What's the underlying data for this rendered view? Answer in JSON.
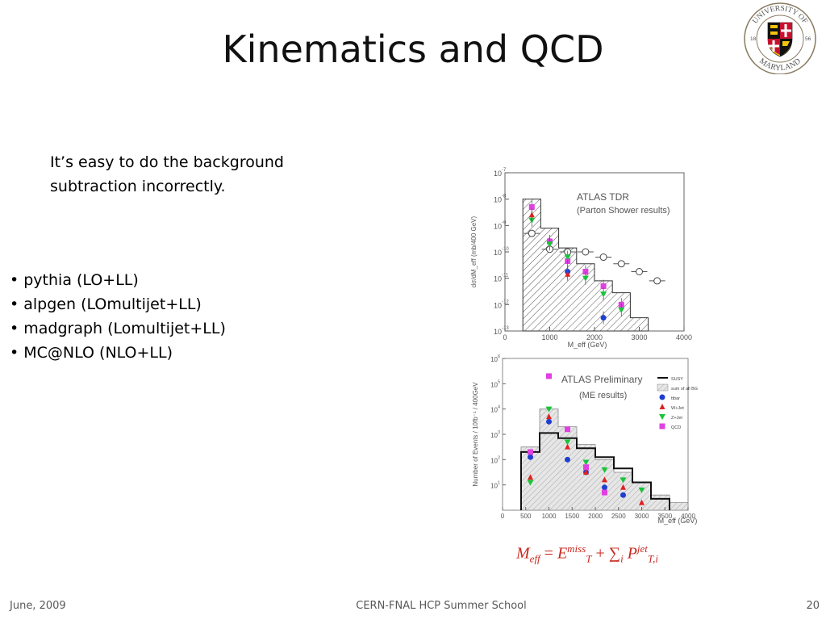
{
  "slide": {
    "title": "Kinematics and QCD",
    "intro": "It’s easy to do the background subtraction incorrectly.",
    "bullets": [
      "pythia (LO+LL)",
      "alpgen (LOmultijet+LL)",
      "madgraph (Lomultijet+LL)",
      "MC@NLO (NLO+LL)"
    ]
  },
  "logo": {
    "top": "UNIVERSITY OF",
    "bottom": "MARYLAND",
    "year_left": "18",
    "year_right": "56"
  },
  "footer": {
    "date": "June, 2009",
    "event": "CERN-FNAL HCP Summer School",
    "page": "20"
  },
  "formula": {
    "lhs": "M",
    "lhs_sub": "eff",
    "e": "E",
    "e_sup": "miss",
    "e_sub": "T",
    "sum_sub": "i",
    "p": "P",
    "p_sup": "jet",
    "p_sub": "T,i"
  },
  "colors": {
    "red": "#e02020",
    "blue": "#1f3fd0",
    "green": "#19c43a",
    "magenta": "#e040e0",
    "formula": "#c8281e"
  },
  "chart_data": [
    {
      "type": "bar",
      "title": "ATLAS TDR",
      "subtitle": "(Parton Shower results)",
      "xlabel": "M_eff (GeV)",
      "ylabel": "dσ/dM_eff (mb/400 GeV)",
      "xlim": [
        0,
        4000
      ],
      "ylim_log10": [
        -13,
        -7
      ],
      "x_ticks": [
        "0",
        "1000",
        "2000",
        "3000",
        "4000"
      ],
      "y_ticks": [
        "10",
        "10",
        "10",
        "10",
        "10",
        "10",
        "10"
      ],
      "y_tick_exponents": [
        "-7",
        "-8",
        "-9",
        "-10",
        "-11",
        "-12",
        "-13"
      ],
      "log_y": true,
      "background_hist": {
        "edges": [
          400,
          800,
          1200,
          1600,
          2000,
          2400,
          2800,
          3200
        ],
        "log10_values": [
          -8.0,
          -9.1,
          -9.85,
          -10.45,
          -11.1,
          -11.55,
          -12.5
        ]
      },
      "series": [
        {
          "name": "open",
          "marker": "open-circle",
          "x": [
            600,
            1000,
            1400,
            1800,
            2200,
            2600,
            3000,
            3400
          ],
          "log10_y": [
            -9.3,
            -9.9,
            -10.0,
            -10.0,
            -10.2,
            -10.45,
            -10.75,
            -11.1
          ]
        },
        {
          "marker": "magenta-square",
          "x": [
            600,
            1000,
            1400,
            1800,
            2200,
            2600
          ],
          "log10_y": [
            -8.3,
            -9.6,
            -10.35,
            -10.75,
            -11.3,
            -12.0
          ]
        },
        {
          "marker": "green-triangle",
          "x": [
            600,
            1000,
            1400,
            1800,
            2200,
            2600
          ],
          "log10_y": [
            -8.8,
            -9.7,
            -10.2,
            -11.0,
            -11.6,
            -12.2
          ]
        },
        {
          "marker": "blue-circle",
          "x": [
            1400,
            2200
          ],
          "log10_y": [
            -10.75,
            -12.5
          ]
        },
        {
          "marker": "red-triangle",
          "x": [
            600,
            1400
          ],
          "log10_y": [
            -8.6,
            -10.85
          ]
        }
      ]
    },
    {
      "type": "bar",
      "title": "ATLAS Preliminary",
      "subtitle": "(ME results)",
      "xlabel": "M_eff (GeV)",
      "ylabel": "Number of Events / 10fb⁻¹ / 400GeV",
      "xlim": [
        0,
        4000
      ],
      "ylim_log10": [
        0,
        6
      ],
      "x_ticks": [
        "0",
        "500",
        "1000",
        "1500",
        "2000",
        "2500",
        "3000",
        "3500",
        "4000"
      ],
      "y_ticks": [
        "10",
        "10",
        "10",
        "10",
        "10",
        "10"
      ],
      "y_tick_exponents": [
        "6",
        "5",
        "4",
        "3",
        "2",
        "1"
      ],
      "log_y": true,
      "legend": [
        "SUSY",
        "sum of all BG",
        "ttbar",
        "W+Jet",
        "Z+Jet",
        "QCD"
      ],
      "legend_position": "top-right",
      "bg_sum": {
        "edges": [
          400,
          800,
          1200,
          1600,
          2000,
          2400,
          2800,
          3200,
          3600,
          4000
        ],
        "log10_values": [
          2.5,
          4.0,
          3.3,
          2.6,
          2.0,
          1.5,
          1.1,
          0.6,
          0.3
        ]
      },
      "susy": {
        "edges": [
          400,
          800,
          1200,
          1600,
          2000,
          2400,
          2800,
          3200,
          3600
        ],
        "log10_values": [
          2.3,
          3.05,
          2.85,
          2.45,
          2.1,
          1.65,
          1.1,
          0.45
        ]
      },
      "series": [
        {
          "name": "ttbar",
          "marker": "blue-circle",
          "x": [
            600,
            1000,
            1400,
            1800,
            2200,
            2600
          ],
          "log10_y": [
            2.1,
            3.5,
            2.0,
            1.5,
            0.9,
            0.6
          ]
        },
        {
          "name": "W+Jet",
          "marker": "red-triangle",
          "x": [
            600,
            1000,
            1400,
            1800,
            2200,
            2600,
            3000
          ],
          "log10_y": [
            1.3,
            3.7,
            2.5,
            1.5,
            1.2,
            0.9,
            0.3
          ]
        },
        {
          "name": "Z+Jet",
          "marker": "green-triangle",
          "x": [
            600,
            1000,
            1400,
            1800,
            2200,
            2600,
            3000
          ],
          "log10_y": [
            1.1,
            4.0,
            2.7,
            1.9,
            1.6,
            1.2,
            0.8
          ]
        },
        {
          "name": "QCD",
          "marker": "magenta-square",
          "x": [
            600,
            1000,
            1400,
            1800,
            2200
          ],
          "log10_y": [
            2.3,
            5.3,
            3.2,
            1.7,
            0.7
          ]
        }
      ]
    }
  ]
}
